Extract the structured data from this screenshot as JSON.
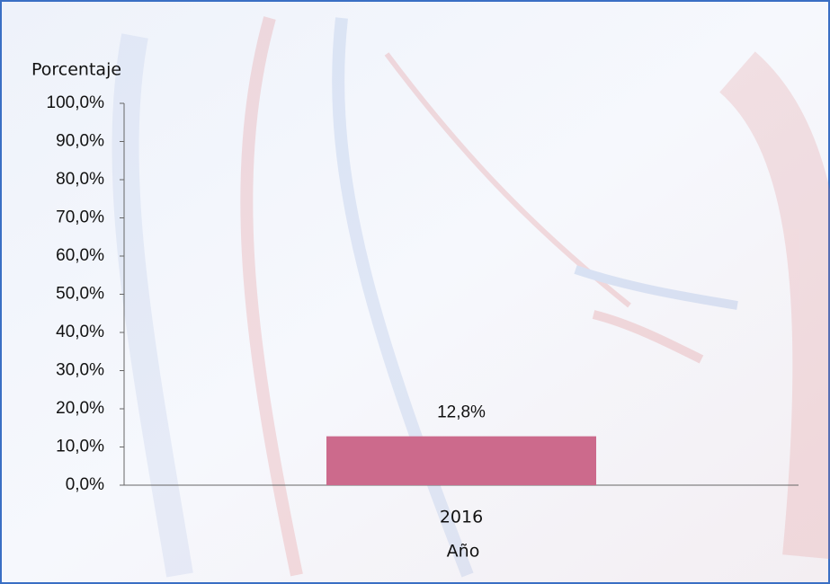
{
  "chart_data": {
    "type": "bar",
    "y_label": "Porcentaje",
    "x_label": "Año",
    "categories": [
      "2016"
    ],
    "values": [
      12.8
    ],
    "value_labels": [
      "12,8%"
    ],
    "color": "#cc6a8c",
    "ylim": [
      0,
      100
    ],
    "yticks": [
      {
        "value": 0,
        "label": "0,0%"
      },
      {
        "value": 10,
        "label": "10,0%"
      },
      {
        "value": 20,
        "label": "20,0%"
      },
      {
        "value": 30,
        "label": "30,0%"
      },
      {
        "value": 40,
        "label": "40,0%"
      },
      {
        "value": 50,
        "label": "50,0%"
      },
      {
        "value": 60,
        "label": "60,0%"
      },
      {
        "value": 70,
        "label": "70,0%"
      },
      {
        "value": 80,
        "label": "80,0%"
      },
      {
        "value": 90,
        "label": "90,0%"
      },
      {
        "value": 100,
        "label": "100,0%"
      }
    ],
    "grid": false
  }
}
